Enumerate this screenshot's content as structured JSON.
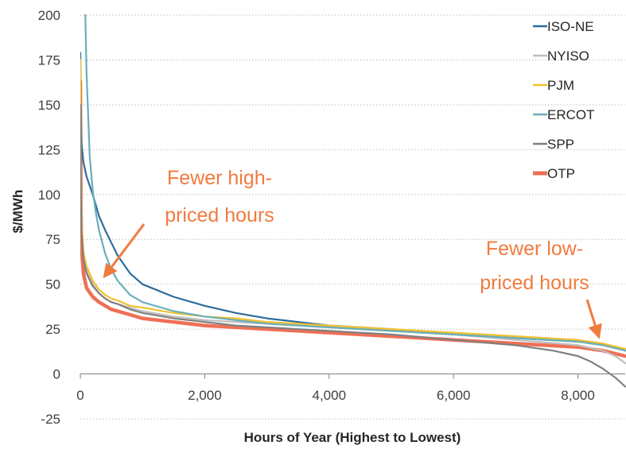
{
  "chart_data": {
    "type": "line",
    "title": "",
    "xlabel": "Hours of Year (Highest to Lowest)",
    "ylabel": "$/MWh",
    "xlim": [
      0,
      8760
    ],
    "ylim": [
      -25,
      200
    ],
    "xticks": [
      0,
      2000,
      4000,
      6000,
      8000
    ],
    "xtick_labels": [
      "0",
      "2,000",
      "4,000",
      "6,000",
      "8,000"
    ],
    "yticks": [
      -25,
      0,
      25,
      50,
      75,
      100,
      125,
      150,
      175,
      200
    ],
    "ytick_labels": [
      "-25",
      "0",
      "25",
      "50",
      "75",
      "100",
      "125",
      "150",
      "175",
      "200"
    ],
    "grid": "horizontal-dotted",
    "legend_position": "top-right",
    "series": [
      {
        "name": "ISO-NE",
        "color": "#2e6c9c",
        "width": 2.2,
        "x": [
          0,
          10,
          20,
          50,
          100,
          200,
          300,
          400,
          500,
          600,
          800,
          1000,
          1500,
          2000,
          2500,
          3000,
          4000,
          5000,
          6000,
          7000,
          8000,
          8400,
          8760
        ],
        "y": [
          179,
          140,
          128,
          118,
          110,
          100,
          88,
          80,
          73,
          66,
          56,
          50,
          43,
          38,
          34,
          31,
          27,
          25,
          22,
          20,
          18,
          17,
          13
        ]
      },
      {
        "name": "NYISO",
        "color": "#bfbfbf",
        "width": 2.2,
        "x": [
          0,
          10,
          20,
          50,
          100,
          200,
          300,
          400,
          500,
          600,
          800,
          1000,
          1500,
          2000,
          2500,
          3000,
          4000,
          5000,
          6000,
          7000,
          8000,
          8400,
          8600,
          8760
        ],
        "y": [
          160,
          100,
          82,
          66,
          58,
          50,
          45,
          42,
          40,
          39,
          37,
          35,
          32,
          30,
          29,
          28,
          26,
          24,
          22,
          19,
          16,
          13,
          10,
          6
        ]
      },
      {
        "name": "PJM",
        "color": "#f2c12e",
        "width": 2.2,
        "x": [
          0,
          10,
          20,
          50,
          100,
          200,
          300,
          400,
          500,
          600,
          800,
          1000,
          1500,
          2000,
          2500,
          3000,
          4000,
          5000,
          6000,
          7000,
          8000,
          8400,
          8760
        ],
        "y": [
          175,
          110,
          86,
          68,
          60,
          52,
          47,
          44,
          42,
          41,
          38,
          37,
          34,
          32,
          31,
          29,
          27,
          25,
          23,
          21,
          19,
          17,
          14
        ]
      },
      {
        "name": "ERCOT",
        "color": "#6aaeb8",
        "width": 2.2,
        "x": [
          80,
          100,
          130,
          150,
          200,
          250,
          300,
          400,
          500,
          600,
          800,
          1000,
          1500,
          2000,
          2500,
          3000,
          4000,
          5000,
          6000,
          7000,
          8000,
          8400,
          8760
        ],
        "y": [
          200,
          168,
          140,
          122,
          102,
          90,
          80,
          67,
          58,
          52,
          44,
          40,
          35,
          32,
          30,
          28,
          26,
          24,
          22,
          20,
          18,
          16,
          13
        ]
      },
      {
        "name": "SPP",
        "color": "#808080",
        "width": 2.2,
        "x": [
          0,
          10,
          20,
          50,
          100,
          200,
          300,
          400,
          500,
          600,
          800,
          1000,
          1500,
          2000,
          2500,
          3000,
          4000,
          5000,
          6000,
          7000,
          7600,
          8000,
          8200,
          8400,
          8600,
          8760
        ],
        "y": [
          150,
          95,
          78,
          64,
          56,
          49,
          45,
          42,
          40,
          39,
          36,
          34,
          31,
          29,
          27,
          26,
          24,
          22,
          19,
          16,
          13,
          10,
          7,
          3,
          -2,
          -7
        ]
      },
      {
        "name": "OTP",
        "color": "#ee6f56",
        "width": 4.5,
        "x": [
          0,
          10,
          20,
          50,
          100,
          200,
          300,
          400,
          500,
          600,
          800,
          1000,
          1500,
          2000,
          2500,
          3000,
          4000,
          5000,
          6000,
          7000,
          8000,
          8400,
          8760
        ],
        "y": [
          163,
          90,
          70,
          56,
          48,
          43,
          40,
          38,
          36,
          35,
          33,
          31,
          29,
          27,
          26,
          25,
          23,
          21,
          19,
          17,
          15,
          13,
          10
        ]
      }
    ],
    "annotations": [
      {
        "lines": [
          "Fewer high-",
          "priced hours"
        ],
        "color": "#f07b3f"
      },
      {
        "lines": [
          "Fewer low-",
          "priced hours"
        ],
        "color": "#f07b3f"
      }
    ]
  }
}
